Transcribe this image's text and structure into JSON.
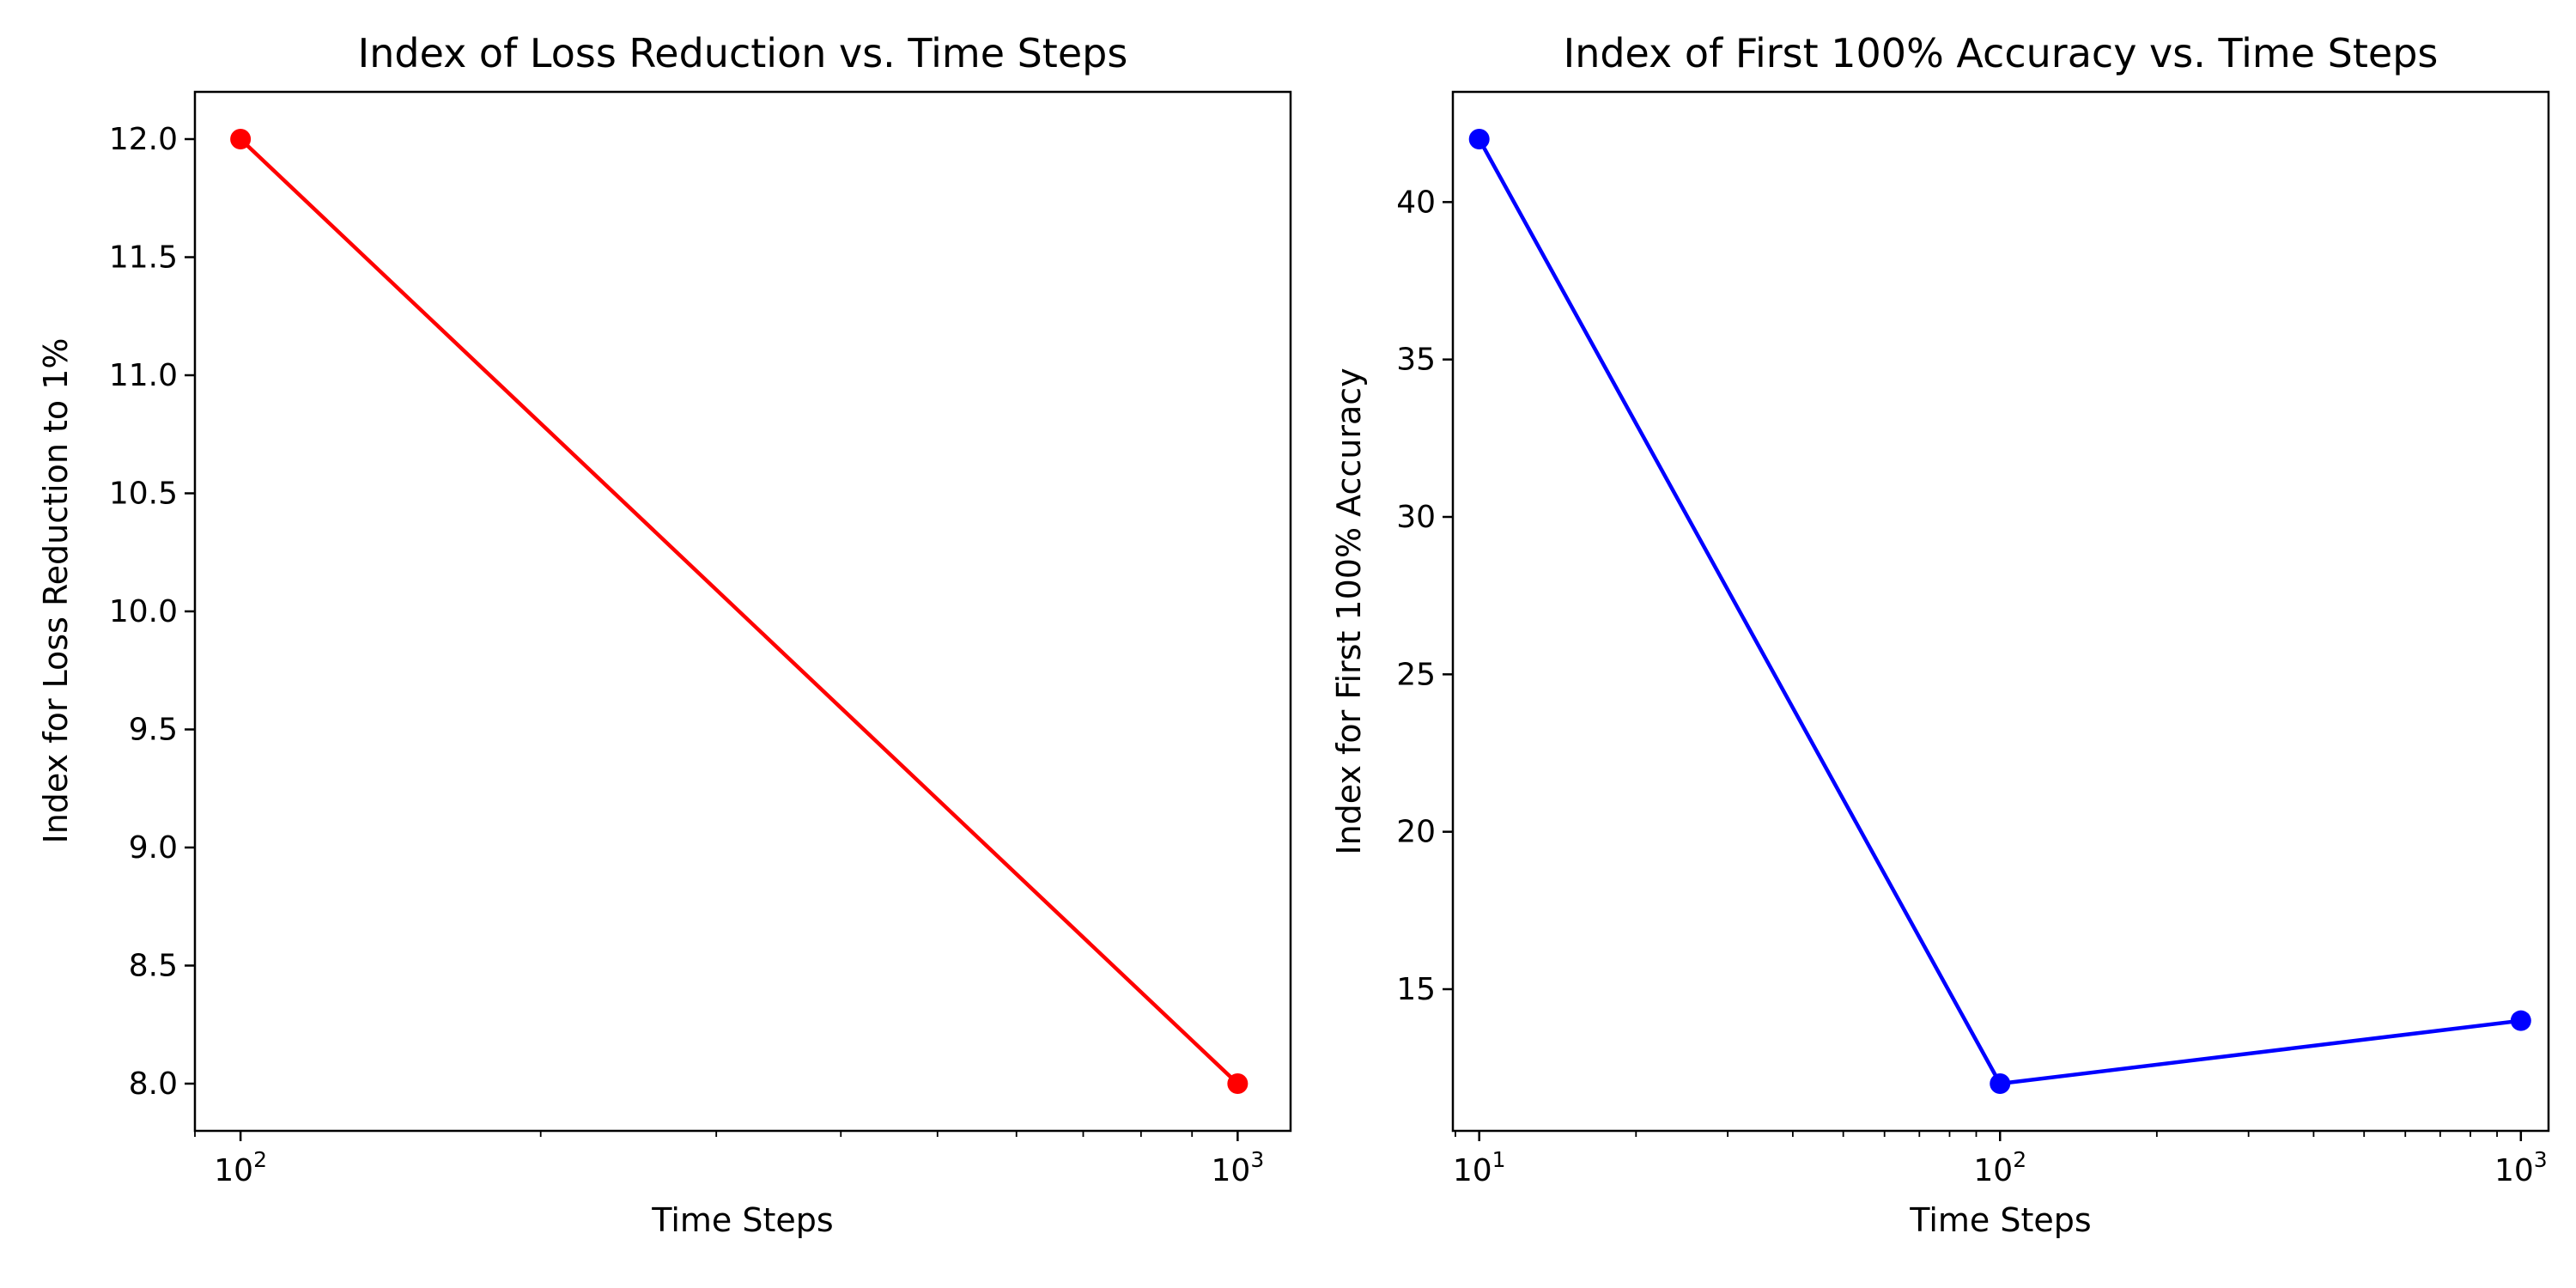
{
  "chart_data": [
    {
      "type": "line",
      "title": "Index of Loss Reduction vs. Time Steps",
      "xlabel": "Time Steps",
      "ylabel": "Index for Loss Reduction to 1%",
      "xscale": "log",
      "xlim": [
        90,
        1130
      ],
      "ylim": [
        7.8,
        12.2
      ],
      "xticks": [
        {
          "value": 100,
          "base": "10",
          "exp": "2"
        },
        {
          "value": 1000,
          "base": "10",
          "exp": "3"
        }
      ],
      "yticks": [
        {
          "value": 8.0,
          "label": "8.0"
        },
        {
          "value": 8.5,
          "label": "8.5"
        },
        {
          "value": 9.0,
          "label": "9.0"
        },
        {
          "value": 9.5,
          "label": "9.5"
        },
        {
          "value": 10.0,
          "label": "10.0"
        },
        {
          "value": 10.5,
          "label": "10.5"
        },
        {
          "value": 11.0,
          "label": "11.0"
        },
        {
          "value": 11.5,
          "label": "11.5"
        },
        {
          "value": 12.0,
          "label": "12.0"
        }
      ],
      "grid": false,
      "series": [
        {
          "color": "#ff0000",
          "x": [
            100,
            1000
          ],
          "y": [
            12,
            8
          ]
        }
      ]
    },
    {
      "type": "line",
      "title": "Index of First 100% Accuracy vs. Time Steps",
      "xlabel": "Time Steps",
      "ylabel": "Index for First 100% Accuracy",
      "xscale": "log",
      "xlim": [
        8.9,
        1130
      ],
      "ylim": [
        10.5,
        43.5
      ],
      "xticks": [
        {
          "value": 10,
          "base": "10",
          "exp": "1"
        },
        {
          "value": 100,
          "base": "10",
          "exp": "2"
        },
        {
          "value": 1000,
          "base": "10",
          "exp": "3"
        }
      ],
      "yticks": [
        {
          "value": 15,
          "label": "15"
        },
        {
          "value": 20,
          "label": "20"
        },
        {
          "value": 25,
          "label": "25"
        },
        {
          "value": 30,
          "label": "30"
        },
        {
          "value": 35,
          "label": "35"
        },
        {
          "value": 40,
          "label": "40"
        }
      ],
      "grid": false,
      "series": [
        {
          "color": "#0000ff",
          "x": [
            10,
            100,
            1000
          ],
          "y": [
            42,
            12,
            14
          ]
        }
      ]
    }
  ]
}
